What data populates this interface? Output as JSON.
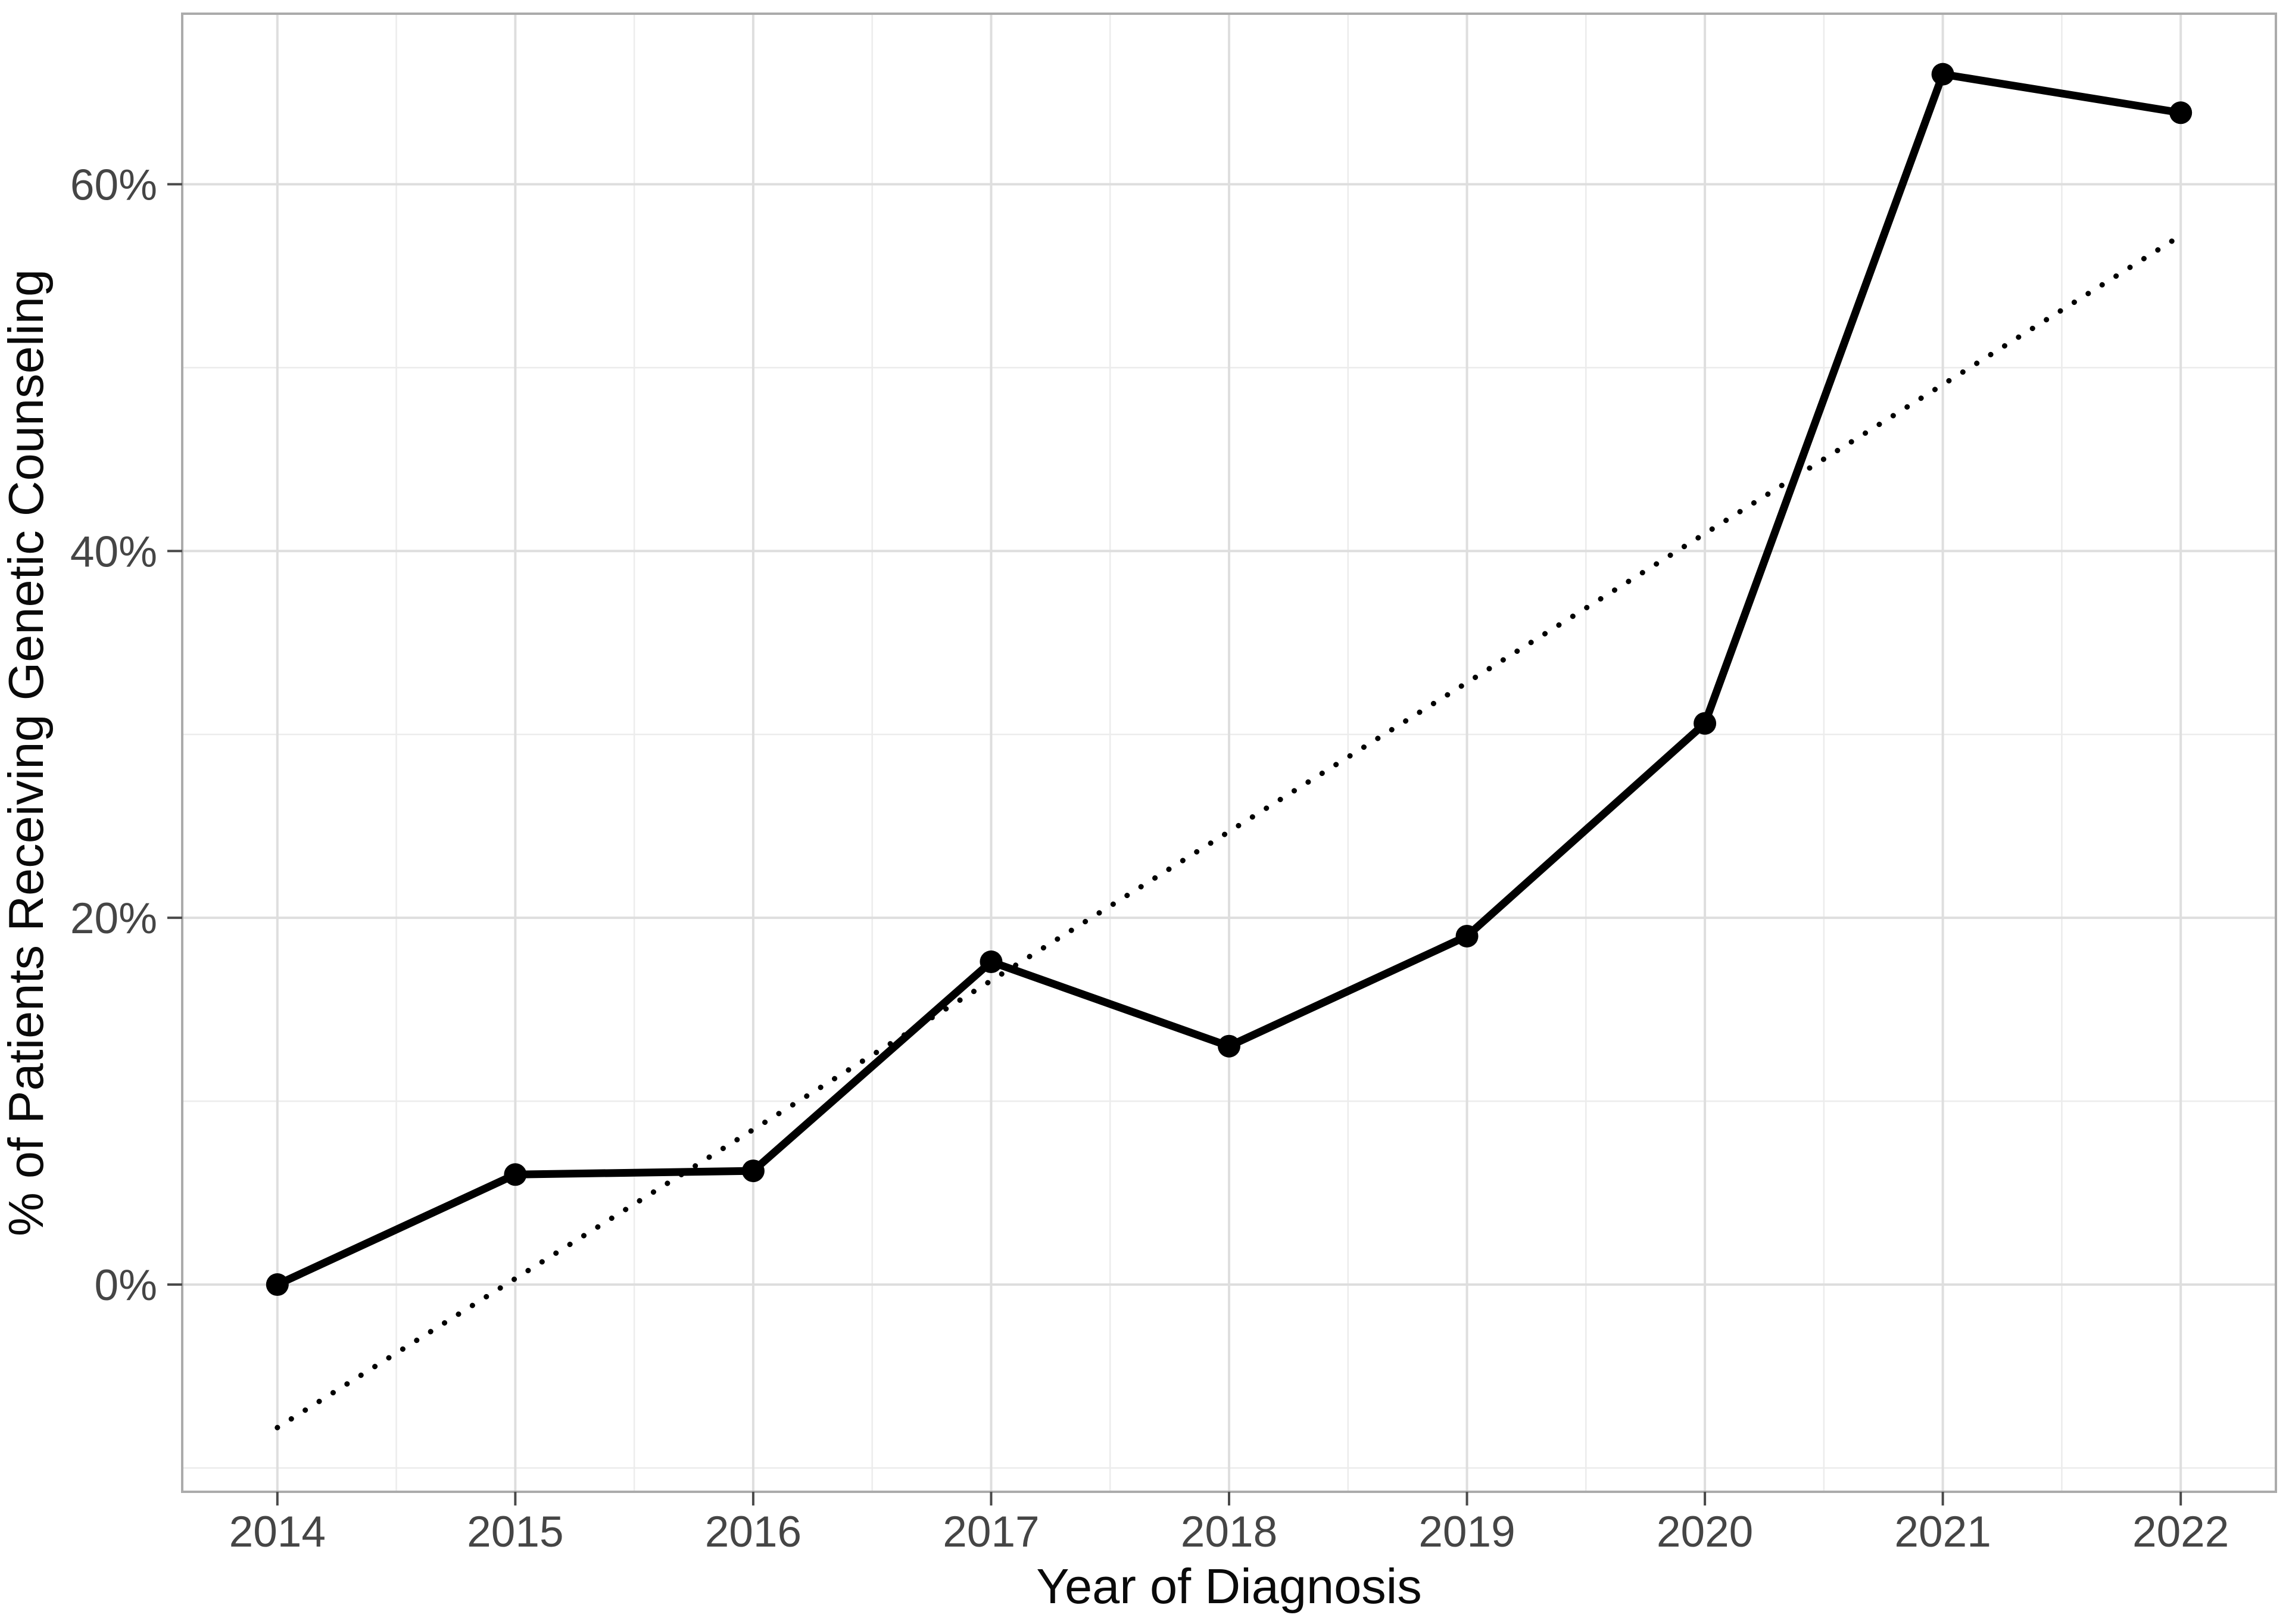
{
  "figure": {
    "kind": "ggplot-style line chart",
    "background": "#ffffff"
  },
  "chart_data": {
    "type": "line",
    "title": "",
    "xlabel": "Year of Diagnosis",
    "ylabel": "% of Patients Receiving Genetic Counseling",
    "categories": [
      2014,
      2015,
      2016,
      2017,
      2018,
      2019,
      2020,
      2021,
      2022
    ],
    "x_tick_labels": [
      "2014",
      "2015",
      "2016",
      "2017",
      "2018",
      "2019",
      "2020",
      "2021",
      "2022"
    ],
    "series": [
      {
        "name": "observed-percent",
        "type": "line-with-points",
        "x": [
          2014,
          2015,
          2016,
          2017,
          2018,
          2019,
          2020,
          2021,
          2022
        ],
        "values": [
          0,
          6.0,
          6.2,
          17.6,
          13.0,
          19.0,
          30.6,
          66.0,
          63.9
        ],
        "linetype": "solid",
        "color": "#000000"
      },
      {
        "name": "linear-trend",
        "type": "trend-line",
        "x": [
          2014,
          2022
        ],
        "values": [
          -7.8,
          57.2
        ],
        "linetype": "dotted",
        "color": "#000000"
      }
    ],
    "y_ticks": [
      0,
      20,
      40,
      60
    ],
    "y_tick_labels": [
      "0%",
      "20%",
      "40%",
      "60%"
    ],
    "y_minor_gridlines": [
      -10,
      10,
      30,
      50
    ],
    "x_minor_gridlines": [
      2014.5,
      2015.5,
      2016.5,
      2017.5,
      2018.5,
      2019.5,
      2020.5,
      2021.5
    ],
    "xlim": [
      2013.6,
      2022.4
    ],
    "ylim": [
      -11.3,
      69.3
    ],
    "grid": true,
    "legend_position": "none",
    "colors": {
      "line": "#000000",
      "point": "#000000",
      "trend": "#000000",
      "grid_major": "#dedede",
      "grid_minor": "#ececec",
      "panel_border": "#ababab",
      "tick_mark": "#4a4a4a",
      "tick_label": "#454545",
      "axis_title": "#0a0a0a",
      "panel_background": "#ffffff"
    }
  }
}
